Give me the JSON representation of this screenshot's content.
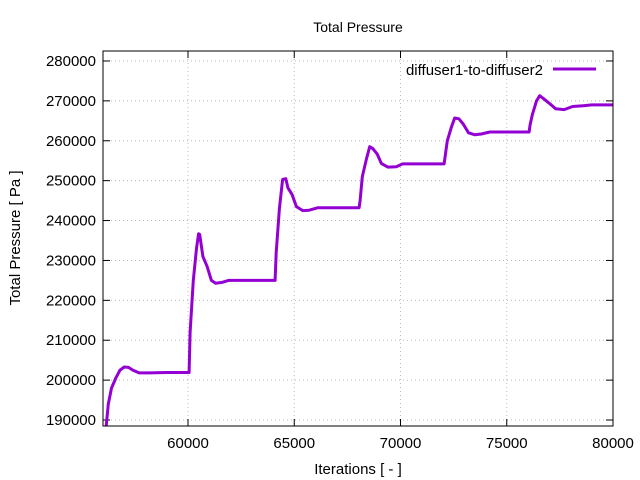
{
  "chart_data": {
    "type": "line",
    "title": "Total Pressure",
    "xlabel": "Iterations [ - ]",
    "ylabel": "Total Pressure [ Pa ]",
    "xlim": [
      56000,
      80000
    ],
    "ylim": [
      188500,
      282500
    ],
    "x_ticks": [
      60000,
      65000,
      70000,
      75000,
      80000
    ],
    "y_ticks": [
      190000,
      200000,
      210000,
      220000,
      230000,
      240000,
      250000,
      260000,
      270000,
      280000
    ],
    "grid": true,
    "legend_position": "top-right",
    "series": [
      {
        "name": "diffuser1-to-diffuser2",
        "color": "#9400d3",
        "points": [
          [
            56150,
            188500
          ],
          [
            56250,
            194000
          ],
          [
            56400,
            198000
          ],
          [
            56600,
            200500
          ],
          [
            56800,
            202500
          ],
          [
            57000,
            203300
          ],
          [
            57200,
            203200
          ],
          [
            57400,
            202500
          ],
          [
            57700,
            201800
          ],
          [
            58200,
            201800
          ],
          [
            59000,
            201900
          ],
          [
            60050,
            201900
          ],
          [
            60100,
            212000
          ],
          [
            60250,
            225000
          ],
          [
            60400,
            233000
          ],
          [
            60500,
            236700
          ],
          [
            60550,
            236500
          ],
          [
            60700,
            231000
          ],
          [
            60900,
            228500
          ],
          [
            61100,
            225000
          ],
          [
            61300,
            224300
          ],
          [
            61600,
            224500
          ],
          [
            61900,
            225000
          ],
          [
            62500,
            225000
          ],
          [
            63500,
            225000
          ],
          [
            64100,
            225000
          ],
          [
            64150,
            232000
          ],
          [
            64300,
            243000
          ],
          [
            64450,
            250300
          ],
          [
            64600,
            250500
          ],
          [
            64700,
            248200
          ],
          [
            64900,
            246500
          ],
          [
            65100,
            243500
          ],
          [
            65400,
            242500
          ],
          [
            65700,
            242600
          ],
          [
            66100,
            243200
          ],
          [
            67000,
            243200
          ],
          [
            68050,
            243200
          ],
          [
            68100,
            245000
          ],
          [
            68200,
            251000
          ],
          [
            68400,
            255500
          ],
          [
            68550,
            258500
          ],
          [
            68700,
            258000
          ],
          [
            68900,
            256700
          ],
          [
            69100,
            254300
          ],
          [
            69400,
            253400
          ],
          [
            69800,
            253500
          ],
          [
            70100,
            254200
          ],
          [
            71000,
            254200
          ],
          [
            72050,
            254200
          ],
          [
            72100,
            256000
          ],
          [
            72200,
            260000
          ],
          [
            72400,
            263500
          ],
          [
            72550,
            265700
          ],
          [
            72750,
            265500
          ],
          [
            72950,
            264200
          ],
          [
            73200,
            262000
          ],
          [
            73500,
            261500
          ],
          [
            73800,
            261700
          ],
          [
            74200,
            262200
          ],
          [
            75000,
            262200
          ],
          [
            76050,
            262200
          ],
          [
            76100,
            264000
          ],
          [
            76200,
            266500
          ],
          [
            76400,
            270000
          ],
          [
            76550,
            271300
          ],
          [
            76750,
            270500
          ],
          [
            77000,
            269400
          ],
          [
            77300,
            268000
          ],
          [
            77700,
            267800
          ],
          [
            78100,
            268600
          ],
          [
            78600,
            268800
          ],
          [
            79000,
            269000
          ],
          [
            80000,
            269000
          ]
        ]
      }
    ]
  }
}
